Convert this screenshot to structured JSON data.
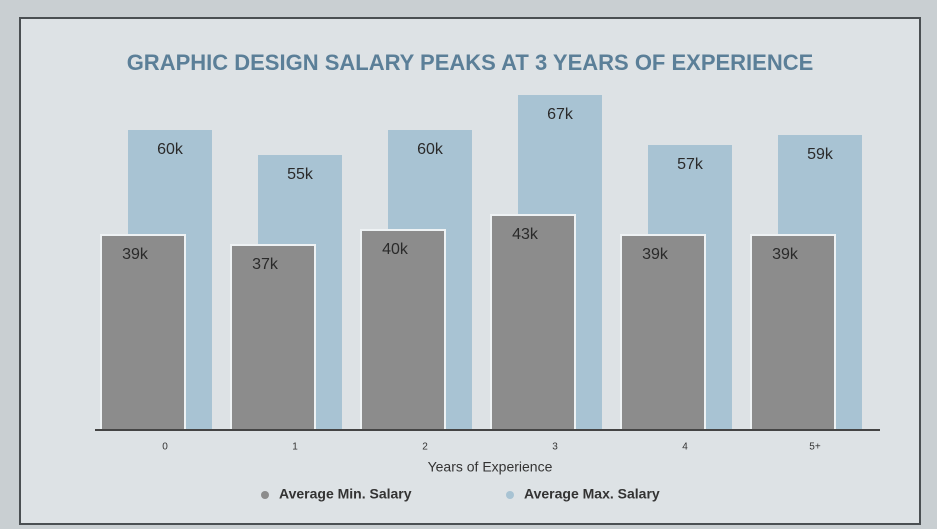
{
  "chart_data": {
    "type": "bar",
    "title": "GRAPHIC DESIGN SALARY PEAKS AT 3 YEARS OF EXPERIENCE",
    "x_label": "Years of Experience",
    "categories": [
      "0",
      "1",
      "2",
      "3",
      "4",
      "5+"
    ],
    "series": [
      {
        "name": "Average Min. Salary",
        "color": "#8c8c8c",
        "values": [
          39,
          37,
          40,
          43,
          39,
          39
        ],
        "value_labels": [
          "39k",
          "37k",
          "40k",
          "43k",
          "39k",
          "39k"
        ]
      },
      {
        "name": "Average Max. Salary",
        "color": "#a8c3d3",
        "values": [
          60,
          55,
          60,
          67,
          57,
          59
        ],
        "value_labels": [
          "60k",
          "55k",
          "60k",
          "67k",
          "57k",
          "59k"
        ]
      }
    ],
    "ylim": [
      0,
      70
    ],
    "legend": "bottom"
  }
}
